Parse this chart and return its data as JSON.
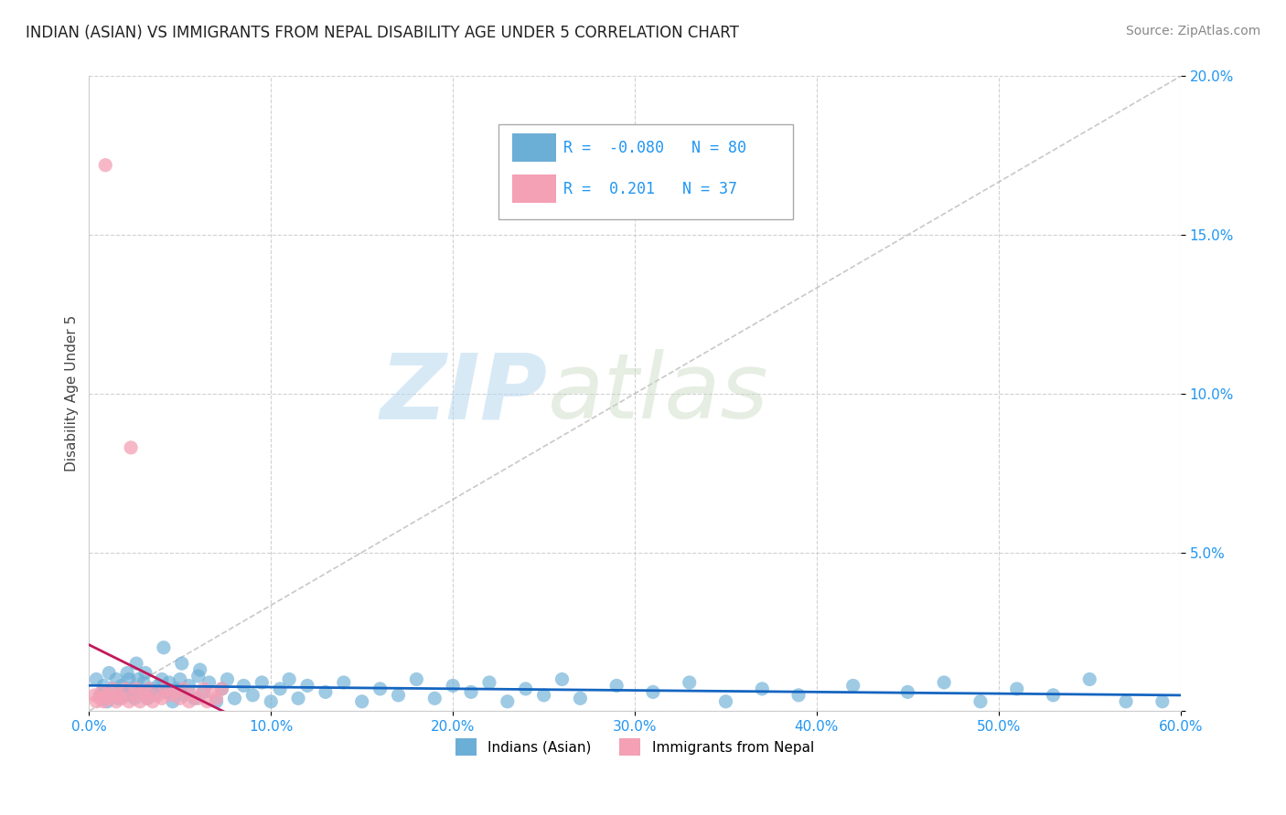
{
  "title": "INDIAN (ASIAN) VS IMMIGRANTS FROM NEPAL DISABILITY AGE UNDER 5 CORRELATION CHART",
  "source": "Source: ZipAtlas.com",
  "xlabel": "",
  "ylabel": "Disability Age Under 5",
  "legend_label1": "Indians (Asian)",
  "legend_label2": "Immigrants from Nepal",
  "R1": -0.08,
  "N1": 80,
  "R2": 0.201,
  "N2": 37,
  "color1": "#6baed6",
  "color2": "#f4a0b5",
  "trendline_color1": "#1565C0",
  "trendline_color2": "#c2185b",
  "diagonal_color": "#bbbbbb",
  "xlim": [
    0.0,
    0.6
  ],
  "ylim": [
    0.0,
    0.2
  ],
  "xticks": [
    0.0,
    0.1,
    0.2,
    0.3,
    0.4,
    0.5,
    0.6
  ],
  "yticks": [
    0.0,
    0.05,
    0.1,
    0.15,
    0.2
  ],
  "xtick_labels": [
    "0.0%",
    "10.0%",
    "20.0%",
    "30.0%",
    "40.0%",
    "50.0%",
    "60.0%"
  ],
  "ytick_labels": [
    "",
    "5.0%",
    "10.0%",
    "15.0%",
    "20.0%"
  ],
  "background_color": "#ffffff",
  "grid_color": "#cccccc",
  "watermark_zip": "ZIP",
  "watermark_atlas": "atlas",
  "blue_scatter_x": [
    0.004,
    0.006,
    0.008,
    0.01,
    0.011,
    0.013,
    0.015,
    0.016,
    0.018,
    0.02,
    0.021,
    0.023,
    0.025,
    0.027,
    0.028,
    0.03,
    0.032,
    0.034,
    0.036,
    0.038,
    0.04,
    0.042,
    0.044,
    0.046,
    0.048,
    0.05,
    0.052,
    0.055,
    0.058,
    0.06,
    0.063,
    0.066,
    0.07,
    0.073,
    0.076,
    0.08,
    0.085,
    0.09,
    0.095,
    0.1,
    0.105,
    0.11,
    0.115,
    0.12,
    0.13,
    0.14,
    0.15,
    0.16,
    0.17,
    0.18,
    0.19,
    0.2,
    0.21,
    0.22,
    0.23,
    0.24,
    0.25,
    0.26,
    0.27,
    0.29,
    0.31,
    0.33,
    0.35,
    0.37,
    0.39,
    0.42,
    0.45,
    0.47,
    0.49,
    0.51,
    0.53,
    0.55,
    0.57,
    0.59,
    0.022,
    0.026,
    0.031,
    0.041,
    0.051,
    0.061
  ],
  "blue_scatter_y": [
    0.01,
    0.005,
    0.008,
    0.003,
    0.012,
    0.007,
    0.01,
    0.004,
    0.008,
    0.005,
    0.012,
    0.007,
    0.004,
    0.01,
    0.006,
    0.009,
    0.004,
    0.007,
    0.005,
    0.008,
    0.01,
    0.006,
    0.009,
    0.003,
    0.007,
    0.01,
    0.005,
    0.008,
    0.004,
    0.011,
    0.006,
    0.009,
    0.003,
    0.007,
    0.01,
    0.004,
    0.008,
    0.005,
    0.009,
    0.003,
    0.007,
    0.01,
    0.004,
    0.008,
    0.006,
    0.009,
    0.003,
    0.007,
    0.005,
    0.01,
    0.004,
    0.008,
    0.006,
    0.009,
    0.003,
    0.007,
    0.005,
    0.01,
    0.004,
    0.008,
    0.006,
    0.009,
    0.003,
    0.007,
    0.005,
    0.008,
    0.006,
    0.009,
    0.003,
    0.007,
    0.005,
    0.01,
    0.003,
    0.003,
    0.01,
    0.015,
    0.012,
    0.02,
    0.015,
    0.013
  ],
  "pink_scatter_x": [
    0.009,
    0.003,
    0.004,
    0.006,
    0.007,
    0.008,
    0.01,
    0.011,
    0.013,
    0.015,
    0.016,
    0.018,
    0.02,
    0.022,
    0.023,
    0.025,
    0.026,
    0.028,
    0.03,
    0.032,
    0.033,
    0.035,
    0.038,
    0.04,
    0.042,
    0.045,
    0.047,
    0.05,
    0.052,
    0.055,
    0.057,
    0.06,
    0.063,
    0.065,
    0.068,
    0.07,
    0.073
  ],
  "pink_scatter_y": [
    0.172,
    0.005,
    0.003,
    0.004,
    0.006,
    0.003,
    0.005,
    0.004,
    0.007,
    0.003,
    0.005,
    0.004,
    0.007,
    0.003,
    0.083,
    0.005,
    0.007,
    0.003,
    0.006,
    0.004,
    0.007,
    0.003,
    0.005,
    0.004,
    0.007,
    0.005,
    0.006,
    0.004,
    0.007,
    0.003,
    0.005,
    0.004,
    0.007,
    0.003,
    0.006,
    0.004,
    0.007
  ]
}
